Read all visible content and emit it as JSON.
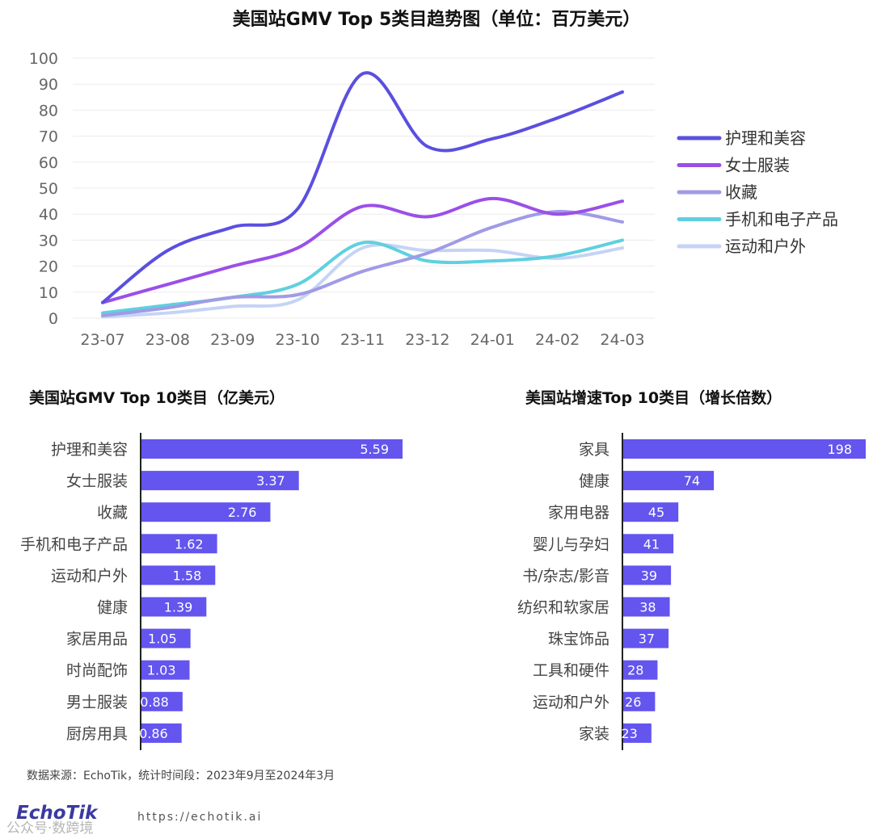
{
  "line_title": "美国站GMV Top 5类目趋势图（单位：百万美元）",
  "bar1_title": "美国站GMV Top 10类目（亿美元）",
  "bar2_title": "美国站增速Top 10类目（增长倍数）",
  "footer": {
    "source": "数据来源：EchoTik，统计时间段：2023年9月至2024年3月",
    "logo": "EchoTik",
    "url": "https://echotik.ai",
    "watermark": "公众号·数跨境"
  },
  "colors": {
    "护理和美容": "#5b4fe0",
    "女士服装": "#9b4fe8",
    "收藏": "#a09be6",
    "手机和电子产品": "#5fd0e0",
    "运动和户外": "#c5d3f5",
    "bar": "#6355ee"
  },
  "chart_data": [
    {
      "type": "line",
      "title": "美国站GMV Top 5类目趋势图（单位：百万美元）",
      "x": [
        "23-07",
        "23-08",
        "23-09",
        "23-10",
        "23-11",
        "23-12",
        "24-01",
        "24-02",
        "24-03"
      ],
      "ylim": [
        0,
        100
      ],
      "yticks": [
        0,
        10,
        20,
        30,
        40,
        50,
        60,
        70,
        80,
        90,
        100
      ],
      "grid": true,
      "legend_position": "right",
      "series": [
        {
          "name": "护理和美容",
          "values": [
            6,
            26,
            35,
            42,
            94,
            66,
            69,
            77,
            87
          ]
        },
        {
          "name": "女士服装",
          "values": [
            6,
            13,
            20,
            27,
            43,
            39,
            46,
            40,
            45
          ]
        },
        {
          "name": "收藏",
          "values": [
            1,
            4,
            8,
            9,
            18,
            25,
            35,
            41,
            37
          ]
        },
        {
          "name": "手机和电子产品",
          "values": [
            2,
            5,
            8,
            13,
            29,
            22,
            22,
            24,
            30
          ]
        },
        {
          "name": "运动和户外",
          "values": [
            0.5,
            2,
            4.5,
            7,
            27,
            26,
            26,
            23,
            27
          ]
        }
      ]
    },
    {
      "type": "bar",
      "orientation": "horizontal",
      "title": "美国站GMV Top 10类目（亿美元）",
      "categories": [
        "护理和美容",
        "女士服装",
        "收藏",
        "手机和电子产品",
        "运动和户外",
        "健康",
        "家居用品",
        "时尚配饰",
        "男士服装",
        "厨房用具"
      ],
      "values": [
        5.59,
        3.37,
        2.76,
        1.62,
        1.58,
        1.39,
        1.05,
        1.03,
        0.88,
        0.86
      ],
      "labels": [
        "5.59",
        "3.37",
        "2.76",
        "1.62",
        "1.58",
        "1.39",
        "1.05",
        "1.03",
        "0.88",
        "0.86"
      ]
    },
    {
      "type": "bar",
      "orientation": "horizontal",
      "title": "美国站增速Top 10类目（增长倍数）",
      "categories": [
        "家具",
        "健康",
        "家用电器",
        "婴儿与孕妇",
        "书/杂志/影音",
        "纺织和软家居",
        "珠宝饰品",
        "工具和硬件",
        "运动和户外",
        "家装"
      ],
      "values": [
        198,
        74,
        45,
        41,
        39,
        38,
        37,
        28,
        26,
        23
      ],
      "labels": [
        "198",
        "74",
        "45",
        "41",
        "39",
        "38",
        "37",
        "28",
        "26",
        "23"
      ]
    }
  ]
}
